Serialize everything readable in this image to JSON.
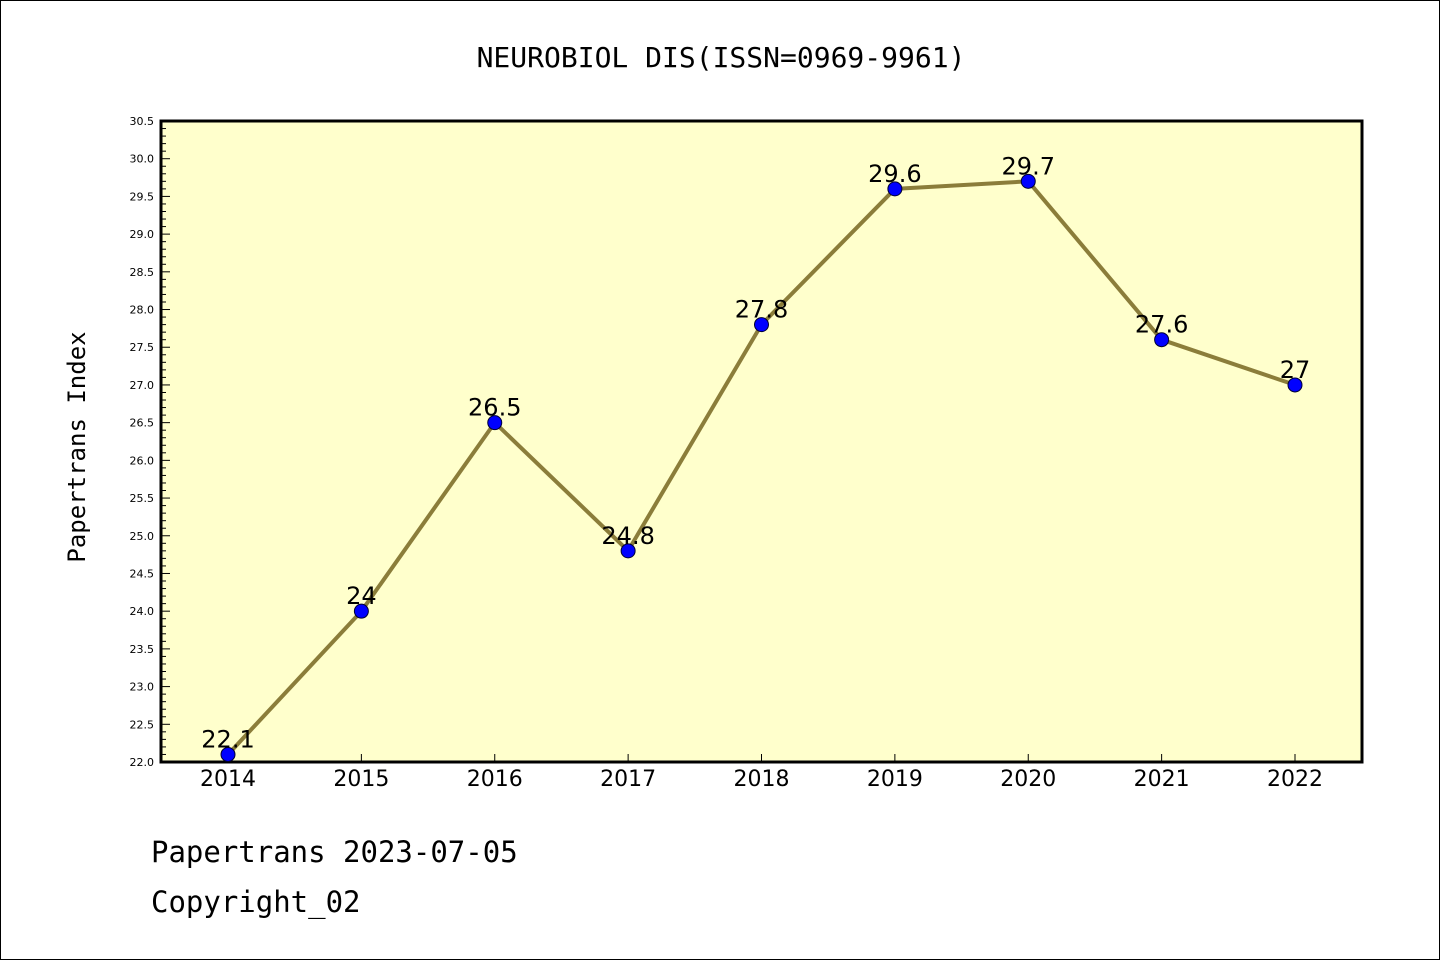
{
  "footer": {
    "line1": "Papertrans 2023-07-05",
    "line2": "Copyright_02"
  },
  "chart_data": {
    "type": "line",
    "title": "NEUROBIOL DIS(ISSN=0969-9961)",
    "xlabel": "",
    "ylabel": "Papertrans Index",
    "categories": [
      "2014",
      "2015",
      "2016",
      "2017",
      "2018",
      "2019",
      "2020",
      "2021",
      "2022"
    ],
    "values": [
      22.1,
      24,
      26.5,
      24.8,
      27.8,
      29.6,
      29.7,
      27.6,
      27
    ],
    "data_labels": [
      "22.1",
      "24",
      "26.5",
      "24.8",
      "27.8",
      "29.6",
      "29.7",
      "27.6",
      "27"
    ],
    "ylim": [
      22.0,
      30.5
    ],
    "yticks": [
      "22.0",
      "22.5",
      "23.0",
      "23.5",
      "24.0",
      "24.5",
      "25.0",
      "25.5",
      "26.0",
      "26.5",
      "27.0",
      "27.5",
      "28.0",
      "28.5",
      "29.0",
      "29.5",
      "30.0",
      "30.5"
    ],
    "grid": false,
    "colors": {
      "plot_background": "#ffffcc",
      "line": "#8b7d3a",
      "marker": "#0000ff"
    }
  }
}
